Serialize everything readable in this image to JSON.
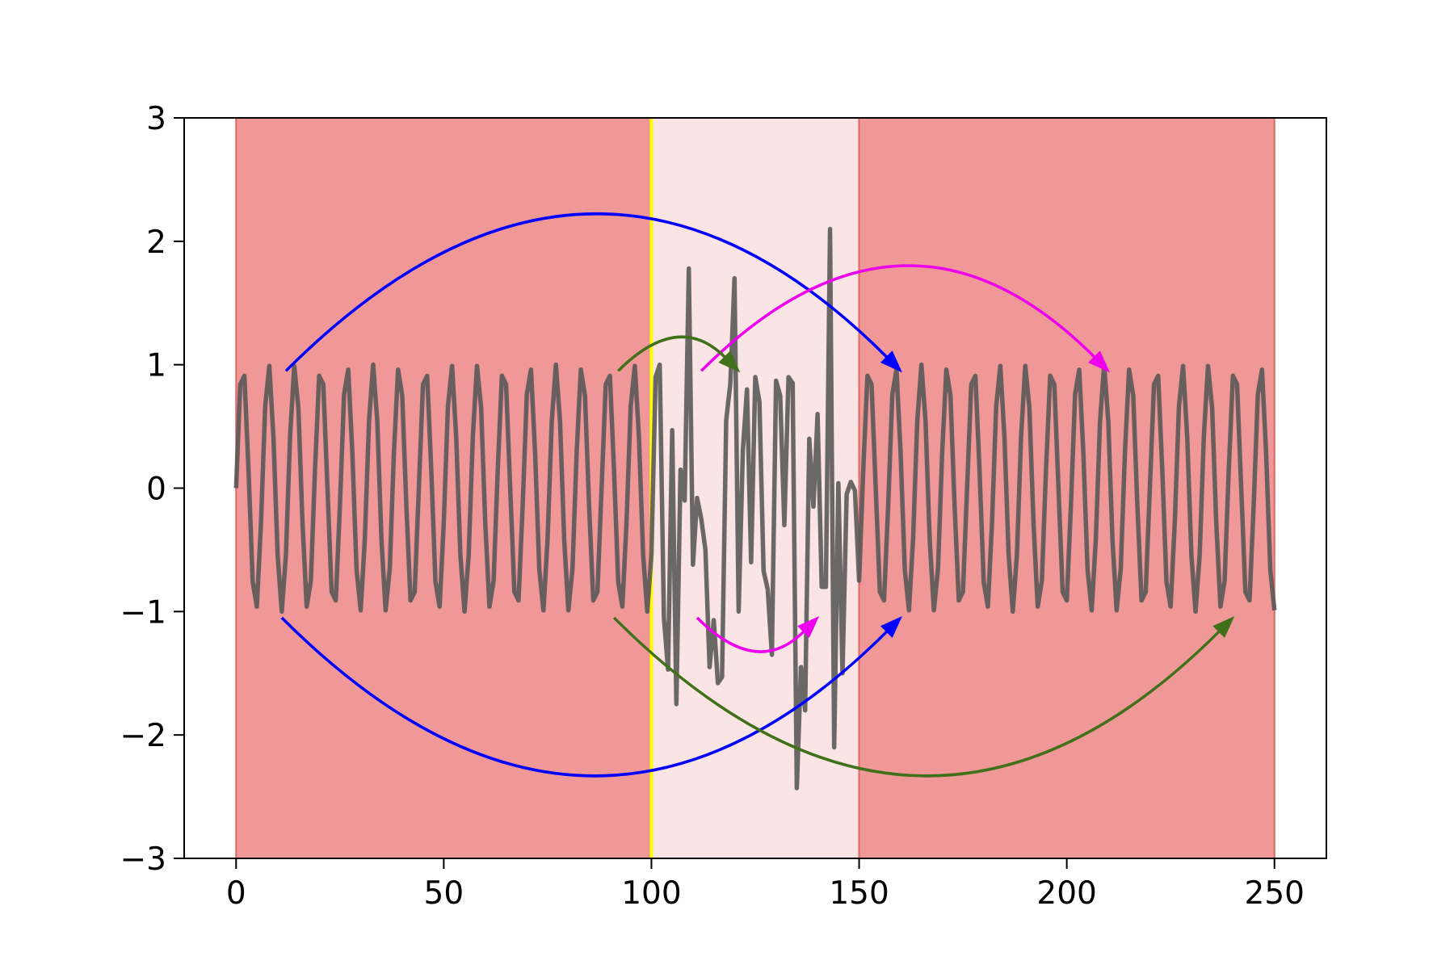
{
  "chart_data": {
    "type": "line",
    "x": [
      0,
      1,
      2,
      3,
      4,
      5,
      6,
      7,
      8,
      9,
      10,
      11,
      12,
      13,
      14,
      15,
      16,
      17,
      18,
      19,
      20,
      21,
      22,
      23,
      24,
      25,
      26,
      27,
      28,
      29,
      30,
      31,
      32,
      33,
      34,
      35,
      36,
      37,
      38,
      39,
      40,
      41,
      42,
      43,
      44,
      45,
      46,
      47,
      48,
      49,
      50,
      51,
      52,
      53,
      54,
      55,
      56,
      57,
      58,
      59,
      60,
      61,
      62,
      63,
      64,
      65,
      66,
      67,
      68,
      69,
      70,
      71,
      72,
      73,
      74,
      75,
      76,
      77,
      78,
      79,
      80,
      81,
      82,
      83,
      84,
      85,
      86,
      87,
      88,
      89,
      90,
      91,
      92,
      93,
      94,
      95,
      96,
      97,
      98,
      99,
      100,
      101,
      102,
      103,
      104,
      105,
      106,
      107,
      108,
      109,
      110,
      111,
      112,
      113,
      114,
      115,
      116,
      117,
      118,
      119,
      120,
      121,
      122,
      123,
      124,
      125,
      126,
      127,
      128,
      129,
      130,
      131,
      132,
      133,
      134,
      135,
      136,
      137,
      138,
      139,
      140,
      141,
      142,
      143,
      144,
      145,
      146,
      147,
      148,
      149,
      150,
      151,
      152,
      153,
      154,
      155,
      156,
      157,
      158,
      159,
      160,
      161,
      162,
      163,
      164,
      165,
      166,
      167,
      168,
      169,
      170,
      171,
      172,
      173,
      174,
      175,
      176,
      177,
      178,
      179,
      180,
      181,
      182,
      183,
      184,
      185,
      186,
      187,
      188,
      189,
      190,
      191,
      192,
      193,
      194,
      195,
      196,
      197,
      198,
      199,
      200,
      201,
      202,
      203,
      204,
      205,
      206,
      207,
      208,
      209,
      210,
      211,
      212,
      213,
      214,
      215,
      216,
      217,
      218,
      219,
      220,
      221,
      222,
      223,
      224,
      225,
      226,
      227,
      228,
      229,
      230,
      231,
      232,
      233,
      234,
      235,
      236,
      237,
      238,
      239,
      240,
      241,
      242,
      243,
      244,
      245,
      246,
      247,
      248,
      249,
      250
    ],
    "series": [
      {
        "color": "#555555",
        "values": [
          0,
          0.84,
          0.91,
          0.14,
          -0.76,
          -0.96,
          -0.28,
          0.66,
          0.99,
          0.41,
          -0.54,
          -1.0,
          -0.54,
          0.42,
          0.99,
          0.65,
          -0.29,
          -0.96,
          -0.75,
          0.15,
          0.91,
          0.84,
          0,
          -0.84,
          -0.91,
          -0.14,
          0.76,
          0.96,
          0.28,
          -0.66,
          -0.99,
          -0.41,
          0.54,
          1.0,
          0.54,
          -0.42,
          -0.99,
          -0.65,
          0.29,
          0.96,
          0.75,
          -0.15,
          -0.91,
          -0.84,
          0,
          0.84,
          0.91,
          0.14,
          -0.76,
          -0.96,
          -0.28,
          0.66,
          0.99,
          0.41,
          -0.54,
          -1.0,
          -0.54,
          0.42,
          0.99,
          0.65,
          -0.29,
          -0.96,
          -0.75,
          0.15,
          0.91,
          0.84,
          0,
          -0.84,
          -0.91,
          -0.14,
          0.76,
          0.96,
          0.28,
          -0.66,
          -0.99,
          -0.41,
          0.54,
          1.0,
          0.54,
          -0.42,
          -0.99,
          -0.65,
          0.29,
          0.96,
          0.75,
          -0.15,
          -0.91,
          -0.84,
          0,
          0.84,
          0.91,
          0.14,
          -0.76,
          -0.96,
          -0.28,
          0.66,
          0.99,
          0.41,
          -0.54,
          -1.0,
          -0.54,
          0.9,
          1.0,
          -1.05,
          -1.47,
          0.47,
          -1.75,
          0.15,
          -0.1,
          1.78,
          -0.62,
          -0.08,
          -0.25,
          -0.5,
          -1.45,
          -1.07,
          -1.58,
          -1.53,
          0.55,
          0.85,
          1.7,
          -1.0,
          0.3,
          0.8,
          -0.6,
          0.9,
          0.7,
          -0.67,
          -0.82,
          -1.35,
          0.87,
          0.75,
          -0.3,
          0.9,
          0.85,
          -2.43,
          -1.45,
          -1.8,
          0.4,
          -0.15,
          0.6,
          -0.8,
          -0.8,
          2.1,
          -2.1,
          0.04,
          -1.5,
          -0.05,
          0.05,
          -0.02,
          -0.75,
          0.15,
          0.91,
          0.84,
          0,
          -0.84,
          -0.91,
          -0.14,
          0.76,
          0.96,
          0.28,
          -0.66,
          -0.99,
          -0.41,
          0.54,
          1.0,
          0.54,
          -0.42,
          -0.99,
          -0.65,
          0.29,
          0.96,
          0.75,
          -0.15,
          -0.91,
          -0.84,
          0,
          0.84,
          0.91,
          0.14,
          -0.76,
          -0.96,
          -0.28,
          0.66,
          0.99,
          0.41,
          -0.54,
          -1.0,
          -0.54,
          0.42,
          0.99,
          0.65,
          -0.29,
          -0.96,
          -0.75,
          0.15,
          0.91,
          0.84,
          0,
          -0.84,
          -0.91,
          -0.14,
          0.76,
          0.96,
          0.28,
          -0.66,
          -0.99,
          -0.41,
          0.54,
          1.0,
          0.54,
          -0.42,
          -0.99,
          -0.65,
          0.29,
          0.96,
          0.75,
          -0.15,
          -0.91,
          -0.84,
          0,
          0.84,
          0.91,
          0.14,
          -0.76,
          -0.96,
          -0.28,
          0.66,
          0.99,
          0.41,
          -0.54,
          -1.0,
          -0.54,
          0.42,
          0.99,
          0.65,
          -0.29,
          -0.96,
          -0.75,
          0.15,
          0.91,
          0.84,
          0,
          -0.84,
          -0.91,
          -0.14,
          0.76,
          0.96,
          0.28,
          -0.66,
          -0.99
        ]
      }
    ],
    "spans": [
      {
        "start": 0,
        "end": 100,
        "color": "#f09898",
        "edgecolor": "#e06666"
      },
      {
        "start": 100,
        "end": 150,
        "color": "#fbe4e4",
        "edgecolor": "#fbe4e4"
      },
      {
        "start": 150,
        "end": 250,
        "color": "#f09898",
        "edgecolor": "#e06666"
      }
    ],
    "vline": {
      "x": 100,
      "color": "#ffff00"
    },
    "arrows": [
      {
        "from": [
          12,
          0.95
        ],
        "to": [
          160,
          0.95
        ],
        "rad": -0.5,
        "color": "#0000ff"
      },
      {
        "from": [
          11,
          -1.05
        ],
        "to": [
          160,
          -1.05
        ],
        "rad": 0.5,
        "color": "#0000ff"
      },
      {
        "from": [
          112,
          0.95
        ],
        "to": [
          210,
          0.95
        ],
        "rad": -0.5,
        "color": "#ee00ee"
      },
      {
        "from": [
          111,
          -1.05
        ],
        "to": [
          140,
          -1.05
        ],
        "rad": 0.5,
        "color": "#ee00ee"
      },
      {
        "from": [
          92,
          0.95
        ],
        "to": [
          121,
          0.95
        ],
        "rad": -0.5,
        "color": "#41701a"
      },
      {
        "from": [
          91,
          -1.05
        ],
        "to": [
          240,
          -1.05
        ],
        "rad": 0.5,
        "color": "#41701a"
      }
    ],
    "xlim": [
      -12.5,
      262.5
    ],
    "xticks": [
      0,
      50,
      100,
      150,
      200,
      250
    ],
    "ylim": [
      -3,
      3
    ],
    "yticks": [
      {
        "value": -3,
        "label": "−3"
      },
      {
        "value": -2,
        "label": "−2"
      },
      {
        "value": -1,
        "label": "−1"
      },
      0,
      1,
      2,
      3
    ]
  }
}
